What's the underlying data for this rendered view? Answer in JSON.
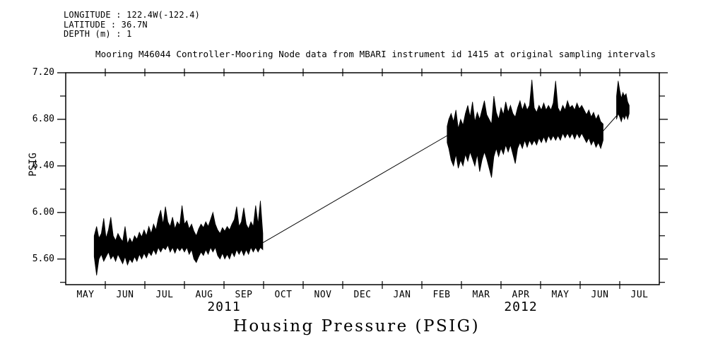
{
  "header": {
    "longitude": "LONGITUDE : 122.4W(-122.4)",
    "latitude": "LATITUDE : 36.7N",
    "depth": "DEPTH (m) : 1"
  },
  "title": "Mooring M46044 Controller-Mooring Node data from MBARI instrument id 1415 at original sampling intervals",
  "footer_title": "Housing Pressure (PSIG)",
  "chart_data": {
    "type": "line",
    "title": "Mooring M46044 Controller-Mooring Node data from MBARI instrument id 1415 at original sampling intervals",
    "xlabel": "Housing Pressure (PSIG)",
    "ylabel": "PSIG",
    "line_color": "#000000",
    "background": "#ffffff",
    "ylim": [
      5.38,
      7.2
    ],
    "ytick_major": [
      5.6,
      6.0,
      6.4,
      6.8,
      7.2
    ],
    "ytick_major_labels": [
      "5.60",
      "6.00",
      "6.40",
      "6.80",
      "7.20"
    ],
    "ytick_minor": [
      5.4,
      5.8,
      6.2,
      6.6,
      7.0
    ],
    "x_unit": "months since 2011-05-01",
    "xlim_months": [
      0,
      15
    ],
    "month_labels": [
      "MAY",
      "JUN",
      "JUL",
      "AUG",
      "SEP",
      "OCT",
      "NOV",
      "DEC",
      "JAN",
      "FEB",
      "MAR",
      "APR",
      "MAY",
      "JUN",
      "JUL"
    ],
    "years": [
      {
        "label": "2011",
        "span_months": [
          0,
          8
        ]
      },
      {
        "label": "2012",
        "span_months": [
          8,
          15
        ]
      }
    ],
    "series": [
      {
        "name": "housing-pressure-2011",
        "style": "envelope",
        "points": [
          [
            0.72,
            5.62,
            5.8
          ],
          [
            0.78,
            5.46,
            5.88
          ],
          [
            0.84,
            5.6,
            5.78
          ],
          [
            0.9,
            5.64,
            5.82
          ],
          [
            0.96,
            5.58,
            5.95
          ],
          [
            1.02,
            5.62,
            5.78
          ],
          [
            1.08,
            5.66,
            5.85
          ],
          [
            1.14,
            5.6,
            5.96
          ],
          [
            1.2,
            5.63,
            5.8
          ],
          [
            1.26,
            5.58,
            5.76
          ],
          [
            1.32,
            5.64,
            5.82
          ],
          [
            1.38,
            5.6,
            5.78
          ],
          [
            1.44,
            5.56,
            5.75
          ],
          [
            1.5,
            5.62,
            5.88
          ],
          [
            1.56,
            5.55,
            5.73
          ],
          [
            1.62,
            5.6,
            5.78
          ],
          [
            1.68,
            5.57,
            5.74
          ],
          [
            1.74,
            5.62,
            5.8
          ],
          [
            1.8,
            5.58,
            5.77
          ],
          [
            1.86,
            5.64,
            5.83
          ],
          [
            1.92,
            5.6,
            5.79
          ],
          [
            1.98,
            5.65,
            5.85
          ],
          [
            2.04,
            5.61,
            5.8
          ],
          [
            2.1,
            5.66,
            5.88
          ],
          [
            2.16,
            5.63,
            5.82
          ],
          [
            2.22,
            5.68,
            5.9
          ],
          [
            2.28,
            5.64,
            5.85
          ],
          [
            2.34,
            5.7,
            5.95
          ],
          [
            2.4,
            5.66,
            6.02
          ],
          [
            2.46,
            5.7,
            5.9
          ],
          [
            2.52,
            5.68,
            6.05
          ],
          [
            2.58,
            5.72,
            5.92
          ],
          [
            2.64,
            5.66,
            5.88
          ],
          [
            2.7,
            5.7,
            5.96
          ],
          [
            2.76,
            5.65,
            5.86
          ],
          [
            2.82,
            5.7,
            5.92
          ],
          [
            2.88,
            5.67,
            5.89
          ],
          [
            2.94,
            5.7,
            6.06
          ],
          [
            3.0,
            5.66,
            5.9
          ],
          [
            3.06,
            5.7,
            5.93
          ],
          [
            3.12,
            5.64,
            5.86
          ],
          [
            3.18,
            5.68,
            5.9
          ],
          [
            3.24,
            5.6,
            5.84
          ],
          [
            3.3,
            5.57,
            5.8
          ],
          [
            3.36,
            5.62,
            5.86
          ],
          [
            3.42,
            5.66,
            5.9
          ],
          [
            3.48,
            5.63,
            5.87
          ],
          [
            3.54,
            5.68,
            5.92
          ],
          [
            3.6,
            5.64,
            5.88
          ],
          [
            3.66,
            5.7,
            5.94
          ],
          [
            3.72,
            5.66,
            6.0
          ],
          [
            3.78,
            5.7,
            5.9
          ],
          [
            3.84,
            5.63,
            5.85
          ],
          [
            3.9,
            5.6,
            5.82
          ],
          [
            3.96,
            5.65,
            5.87
          ],
          [
            4.02,
            5.6,
            5.84
          ],
          [
            4.08,
            5.64,
            5.88
          ],
          [
            4.14,
            5.6,
            5.85
          ],
          [
            4.2,
            5.66,
            5.9
          ],
          [
            4.26,
            5.62,
            5.94
          ],
          [
            4.32,
            5.68,
            6.05
          ],
          [
            4.38,
            5.64,
            5.88
          ],
          [
            4.44,
            5.68,
            5.92
          ],
          [
            4.5,
            5.63,
            6.04
          ],
          [
            4.56,
            5.68,
            5.9
          ],
          [
            4.62,
            5.64,
            5.86
          ],
          [
            4.68,
            5.7,
            5.92
          ],
          [
            4.74,
            5.66,
            5.88
          ],
          [
            4.8,
            5.7,
            6.06
          ],
          [
            4.86,
            5.66,
            5.9
          ],
          [
            4.92,
            5.7,
            6.1
          ],
          [
            4.98,
            5.68,
            5.82
          ]
        ]
      },
      {
        "name": "gap-line",
        "style": "line",
        "points": [
          [
            4.98,
            5.74
          ],
          [
            9.64,
            6.66
          ]
        ]
      },
      {
        "name": "housing-pressure-2012",
        "style": "envelope",
        "points": [
          [
            9.64,
            6.6,
            6.74
          ],
          [
            9.68,
            6.55,
            6.8
          ],
          [
            9.74,
            6.45,
            6.85
          ],
          [
            9.8,
            6.4,
            6.78
          ],
          [
            9.86,
            6.5,
            6.88
          ],
          [
            9.92,
            6.38,
            6.72
          ],
          [
            9.98,
            6.45,
            6.8
          ],
          [
            10.04,
            6.4,
            6.75
          ],
          [
            10.1,
            6.5,
            6.85
          ],
          [
            10.16,
            6.44,
            6.92
          ],
          [
            10.22,
            6.52,
            6.82
          ],
          [
            10.28,
            6.46,
            6.95
          ],
          [
            10.34,
            6.4,
            6.78
          ],
          [
            10.4,
            6.5,
            6.86
          ],
          [
            10.46,
            6.35,
            6.8
          ],
          [
            10.52,
            6.45,
            6.88
          ],
          [
            10.58,
            6.52,
            6.96
          ],
          [
            10.64,
            6.46,
            6.84
          ],
          [
            10.7,
            6.38,
            6.8
          ],
          [
            10.76,
            6.3,
            6.76
          ],
          [
            10.82,
            6.48,
            7.0
          ],
          [
            10.88,
            6.55,
            6.86
          ],
          [
            10.94,
            6.48,
            6.8
          ],
          [
            11.0,
            6.55,
            6.9
          ],
          [
            11.06,
            6.5,
            6.84
          ],
          [
            11.12,
            6.58,
            6.95
          ],
          [
            11.18,
            6.52,
            6.86
          ],
          [
            11.24,
            6.58,
            6.92
          ],
          [
            11.3,
            6.5,
            6.85
          ],
          [
            11.36,
            6.42,
            6.82
          ],
          [
            11.42,
            6.55,
            6.9
          ],
          [
            11.48,
            6.6,
            6.96
          ],
          [
            11.54,
            6.55,
            6.88
          ],
          [
            11.6,
            6.62,
            6.94
          ],
          [
            11.66,
            6.56,
            6.88
          ],
          [
            11.72,
            6.62,
            6.92
          ],
          [
            11.78,
            6.58,
            7.14
          ],
          [
            11.84,
            6.62,
            6.9
          ],
          [
            11.9,
            6.58,
            6.86
          ],
          [
            11.96,
            6.64,
            6.92
          ],
          [
            12.02,
            6.6,
            6.88
          ],
          [
            12.08,
            6.65,
            6.94
          ],
          [
            12.14,
            6.6,
            6.88
          ],
          [
            12.2,
            6.66,
            6.92
          ],
          [
            12.26,
            6.62,
            6.88
          ],
          [
            12.32,
            6.66,
            6.94
          ],
          [
            12.38,
            6.62,
            7.13
          ],
          [
            12.44,
            6.66,
            6.9
          ],
          [
            12.5,
            6.62,
            6.86
          ],
          [
            12.56,
            6.68,
            6.92
          ],
          [
            12.62,
            6.64,
            6.88
          ],
          [
            12.68,
            6.68,
            6.96
          ],
          [
            12.74,
            6.64,
            6.9
          ],
          [
            12.8,
            6.68,
            6.92
          ],
          [
            12.86,
            6.63,
            6.88
          ],
          [
            12.92,
            6.68,
            6.94
          ],
          [
            12.98,
            6.64,
            6.89
          ],
          [
            13.04,
            6.68,
            6.92
          ],
          [
            13.1,
            6.64,
            6.88
          ],
          [
            13.16,
            6.6,
            6.84
          ],
          [
            13.22,
            6.64,
            6.88
          ],
          [
            13.28,
            6.58,
            6.82
          ],
          [
            13.34,
            6.62,
            6.86
          ],
          [
            13.4,
            6.56,
            6.8
          ],
          [
            13.46,
            6.6,
            6.84
          ],
          [
            13.52,
            6.55,
            6.78
          ],
          [
            13.58,
            6.62,
            6.76
          ]
        ]
      },
      {
        "name": "tail-line",
        "style": "line",
        "points": [
          [
            13.58,
            6.7
          ],
          [
            13.92,
            6.83
          ]
        ]
      },
      {
        "name": "final-burst",
        "style": "envelope",
        "points": [
          [
            13.92,
            6.8,
            7.0
          ],
          [
            13.96,
            6.85,
            7.13
          ],
          [
            14.0,
            6.82,
            7.05
          ],
          [
            14.04,
            6.78,
            6.98
          ],
          [
            14.08,
            6.83,
            7.03
          ],
          [
            14.12,
            6.8,
            7.0
          ],
          [
            14.16,
            6.84,
            7.02
          ],
          [
            14.2,
            6.8,
            6.95
          ],
          [
            14.24,
            6.85,
            6.92
          ]
        ]
      }
    ]
  }
}
